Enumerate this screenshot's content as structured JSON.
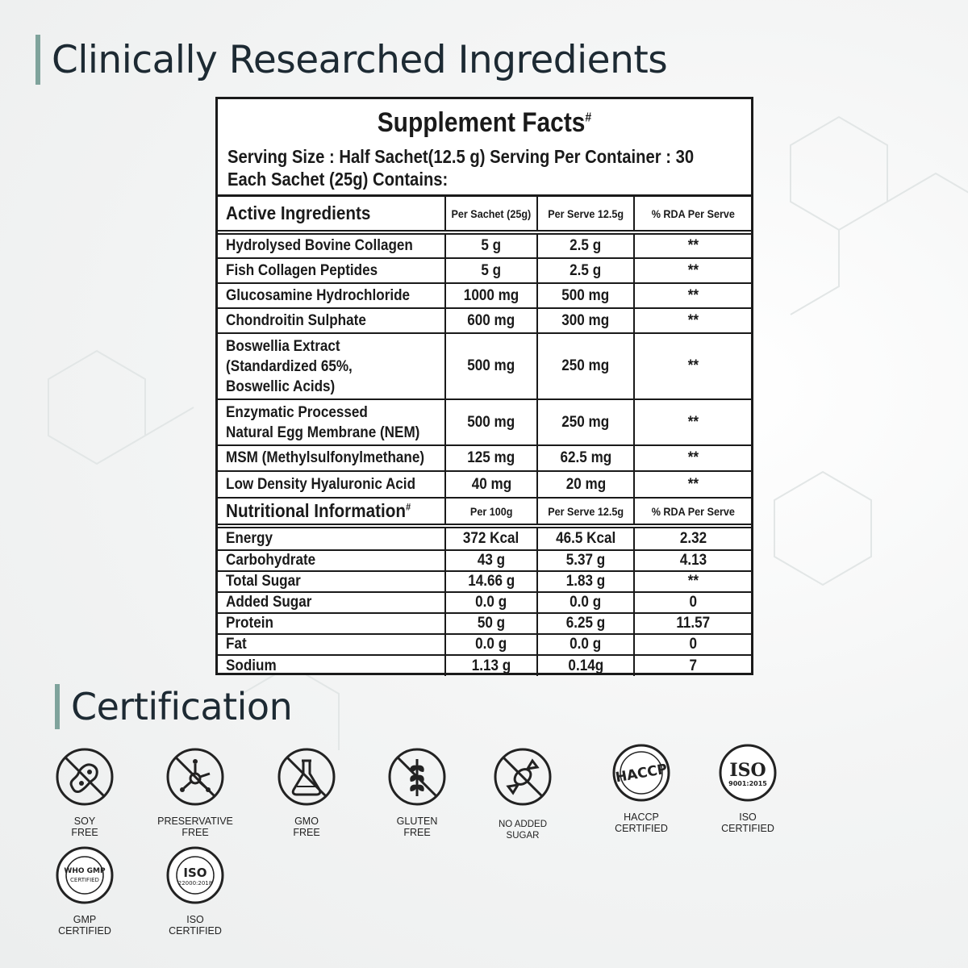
{
  "headings": {
    "ingredients": "Clinically Researched Ingredients",
    "certification": "Certification"
  },
  "facts": {
    "title": "Supplement Facts",
    "title_mark": "#",
    "serving": "Serving Size : Half Sachet(12.5 g)   Serving Per Container : 30",
    "each": "Each Sachet (25g) Contains:",
    "active_header": [
      "Active Ingredients",
      "Per Sachet (25g)",
      "Per Serve 12.5g",
      "% RDA Per Serve"
    ],
    "active": [
      [
        "Hydrolysed Bovine Collagen",
        "5 g",
        "2.5 g",
        "**"
      ],
      [
        "Fish Collagen Peptides",
        "5 g",
        "2.5 g",
        "**"
      ],
      [
        "Glucosamine Hydrochloride",
        "1000 mg",
        "500 mg",
        "**"
      ],
      [
        "Chondroitin Sulphate",
        "600 mg",
        "300 mg",
        "**"
      ],
      [
        "Boswellia Extract",
        "500 mg",
        "250 mg",
        "**"
      ],
      [
        "Enzymatic Processed",
        "500 mg",
        "250 mg",
        "**"
      ],
      [
        "MSM (Methylsulfonylmethane)",
        "125 mg",
        "62.5 mg",
        "**"
      ],
      [
        "Low Density Hyaluronic Acid",
        "40 mg",
        "20 mg",
        "**"
      ]
    ],
    "boswellia_lines": [
      "(Standardized 65%,",
      "Boswellic Acids)"
    ],
    "nem_line": "Natural Egg Membrane (NEM)",
    "nutri_header": [
      "Nutritional Information",
      "Per 100g",
      "Per Serve 12.5g",
      "% RDA Per Serve"
    ],
    "nutri_mark": "#",
    "nutri": [
      [
        "Energy",
        "372 Kcal",
        "46.5 Kcal",
        "2.32"
      ],
      [
        "Carbohydrate",
        "43 g",
        "5.37 g",
        "4.13"
      ],
      [
        "Total Sugar",
        "14.66 g",
        "1.83 g",
        "**"
      ],
      [
        "Added Sugar",
        "0.0 g",
        "0.0 g",
        "0"
      ],
      [
        "Protein",
        "50 g",
        "6.25 g",
        "11.57"
      ],
      [
        "Fat",
        "0.0 g",
        "0.0 g",
        "0"
      ],
      [
        "Sodium",
        "1.13 g",
        "0.14g",
        "7"
      ]
    ]
  },
  "certs": [
    {
      "icon": "soy-free-icon",
      "l1": "SOY",
      "l2": "FREE"
    },
    {
      "icon": "preservative-free-icon",
      "l1": "PRESERVATIVE",
      "l2": "FREE"
    },
    {
      "icon": "gmo-free-icon",
      "l1": "GMO",
      "l2": "FREE"
    },
    {
      "icon": "gluten-free-icon",
      "l1": "GLUTEN",
      "l2": "FREE"
    },
    {
      "icon": "no-added-sugar-icon",
      "l1": "NO ADDED",
      "l2": "SUGAR"
    },
    {
      "icon": "haccp-icon",
      "l1": "HACCP",
      "l2": "CERTIFIED"
    },
    {
      "icon": "iso-9001-icon",
      "l1": "ISO",
      "l2": "CERTIFIED"
    },
    {
      "icon": "who-gmp-icon",
      "l1": "GMP",
      "l2": "CERTIFIED"
    },
    {
      "icon": "iso-22000-icon",
      "l1": "ISO",
      "l2": "CERTIFIED"
    }
  ],
  "badges": {
    "haccp": "HACCP",
    "iso9001": "ISO",
    "iso9001_num": "9001:2015",
    "gmp_top": "WHO GMP",
    "gmp_mid": "CERTIFIED",
    "iso22000": "ISO",
    "iso22000_num": "22000:2018"
  }
}
